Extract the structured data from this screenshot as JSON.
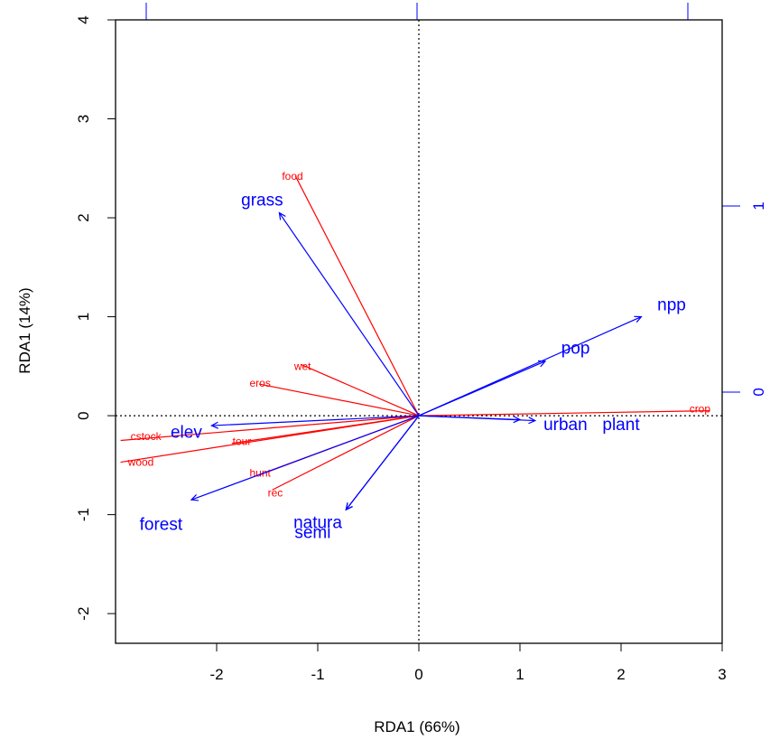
{
  "chart_data": {
    "type": "scatter",
    "subtype": "rda-triplot",
    "title": "",
    "xlabel": "RDA1 (66%)",
    "ylabel": "RDA1 (14%)",
    "xlim": [
      -3,
      3
    ],
    "ylim": [
      -2.3,
      4
    ],
    "xticks": [
      -2,
      -1,
      0,
      1,
      2,
      3
    ],
    "yticks": [
      -2,
      -1,
      0,
      1,
      2,
      3,
      4
    ],
    "secondary_axis_ticks": [
      0,
      1
    ],
    "secondary_axis_range": [
      -1.35,
      2.0
    ],
    "reference_lines": {
      "x": 0,
      "y": 0,
      "style": "dotted"
    },
    "colors": {
      "species": "#ff0000",
      "environment": "#0000ff",
      "axes": "#000000"
    },
    "species": {
      "name": "",
      "color": "#ff0000",
      "points": [
        {
          "label": "food",
          "x": -1.22,
          "y": 2.42,
          "lx": -1.25,
          "ly": 2.42
        },
        {
          "label": "wet",
          "x": -1.17,
          "y": 0.52,
          "lx": -1.15,
          "ly": 0.5
        },
        {
          "label": "eros",
          "x": -1.58,
          "y": 0.32,
          "lx": -1.57,
          "ly": 0.33
        },
        {
          "label": "crop",
          "x": 2.88,
          "y": 0.05,
          "lx": 2.78,
          "ly": 0.07
        },
        {
          "label": "cstock",
          "x": -2.95,
          "y": -0.25,
          "lx": -2.7,
          "ly": -0.21
        },
        {
          "label": "tour",
          "x": -1.85,
          "y": -0.28,
          "lx": -1.75,
          "ly": -0.26
        },
        {
          "label": "wood",
          "x": -2.95,
          "y": -0.47,
          "lx": -2.75,
          "ly": -0.47
        },
        {
          "label": "hunt",
          "x": -1.58,
          "y": -0.6,
          "lx": -1.57,
          "ly": -0.58
        },
        {
          "label": "rec",
          "x": -1.45,
          "y": -0.75,
          "lx": -1.42,
          "ly": -0.78
        }
      ]
    },
    "environment": {
      "name": "",
      "color": "#0000ff",
      "arrows": [
        {
          "label": "grass",
          "x": -1.38,
          "y": 2.05,
          "lx": -1.55,
          "ly": 2.18
        },
        {
          "label": "npp",
          "x": 2.2,
          "y": 1.0,
          "lx": 2.5,
          "ly": 1.12
        },
        {
          "label": "pop",
          "x": 1.25,
          "y": 0.55,
          "lx": 1.55,
          "ly": 0.68
        },
        {
          "label": "urban",
          "x": 1.0,
          "y": -0.04,
          "lx": 1.45,
          "ly": -0.09
        },
        {
          "label": "plant",
          "x": 1.15,
          "y": -0.05,
          "lx": 2.0,
          "ly": -0.09
        },
        {
          "label": "elev",
          "x": -2.05,
          "y": -0.1,
          "lx": -2.3,
          "ly": -0.17
        },
        {
          "label": "forest",
          "x": -2.25,
          "y": -0.85,
          "lx": -2.55,
          "ly": -1.1
        },
        {
          "label": "natura",
          "x": -0.72,
          "y": -0.95,
          "lx": -1.0,
          "ly": -1.08
        },
        {
          "label": "semi",
          "x": -0.72,
          "y": -0.95,
          "lx": -1.05,
          "ly": -1.18
        }
      ]
    }
  }
}
